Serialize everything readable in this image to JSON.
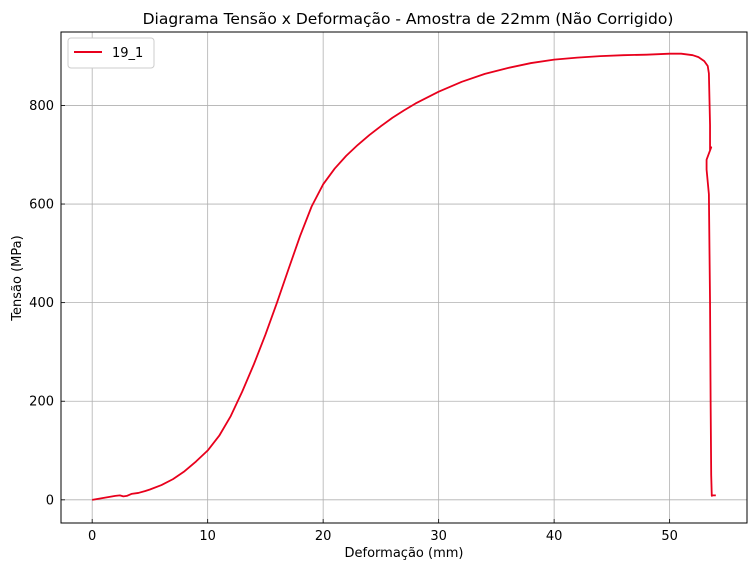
{
  "chart_data": {
    "type": "line",
    "title": "Diagrama Tensão x Deformação - Amostra de 22mm (Não Corrigido)",
    "xlabel": "Deformação (mm)",
    "ylabel": "Tensão (MPa)",
    "xlim": [
      -2.7,
      56.7
    ],
    "ylim": [
      -47,
      949
    ],
    "xticks": [
      0,
      10,
      20,
      30,
      40,
      50
    ],
    "yticks": [
      0,
      200,
      400,
      600,
      800
    ],
    "grid": true,
    "legend_position": "top-left",
    "series": [
      {
        "name": "19_1",
        "color": "#e8001c",
        "x": [
          0,
          0.5,
          1,
          1.5,
          2,
          2.4,
          2.7,
          3.0,
          3.4,
          4,
          4.6,
          5,
          6,
          7,
          8,
          9,
          10,
          11,
          12,
          13,
          14,
          15,
          16,
          17,
          18,
          19,
          20,
          21,
          22,
          23,
          24,
          25,
          26,
          27,
          28,
          30,
          32,
          34,
          36,
          38,
          40,
          42,
          44,
          46,
          48,
          50,
          51,
          52,
          52.5,
          53,
          53.3,
          53.4,
          53.5,
          53.5,
          53.6,
          53.2,
          53.2,
          53.4,
          53.5,
          53.55,
          53.6,
          53.65,
          53.7,
          54.0
        ],
        "y": [
          0,
          2,
          4,
          6,
          8,
          9,
          7,
          8,
          12,
          14,
          18,
          21,
          30,
          42,
          58,
          78,
          100,
          130,
          170,
          220,
          275,
          335,
          400,
          468,
          535,
          595,
          640,
          672,
          698,
          720,
          740,
          758,
          775,
          790,
          804,
          828,
          848,
          864,
          876,
          886,
          893,
          897,
          900,
          902,
          903,
          905,
          905,
          902,
          898,
          890,
          880,
          865,
          760,
          710,
          715,
          690,
          670,
          620,
          400,
          200,
          50,
          8,
          9,
          9
        ]
      }
    ]
  }
}
